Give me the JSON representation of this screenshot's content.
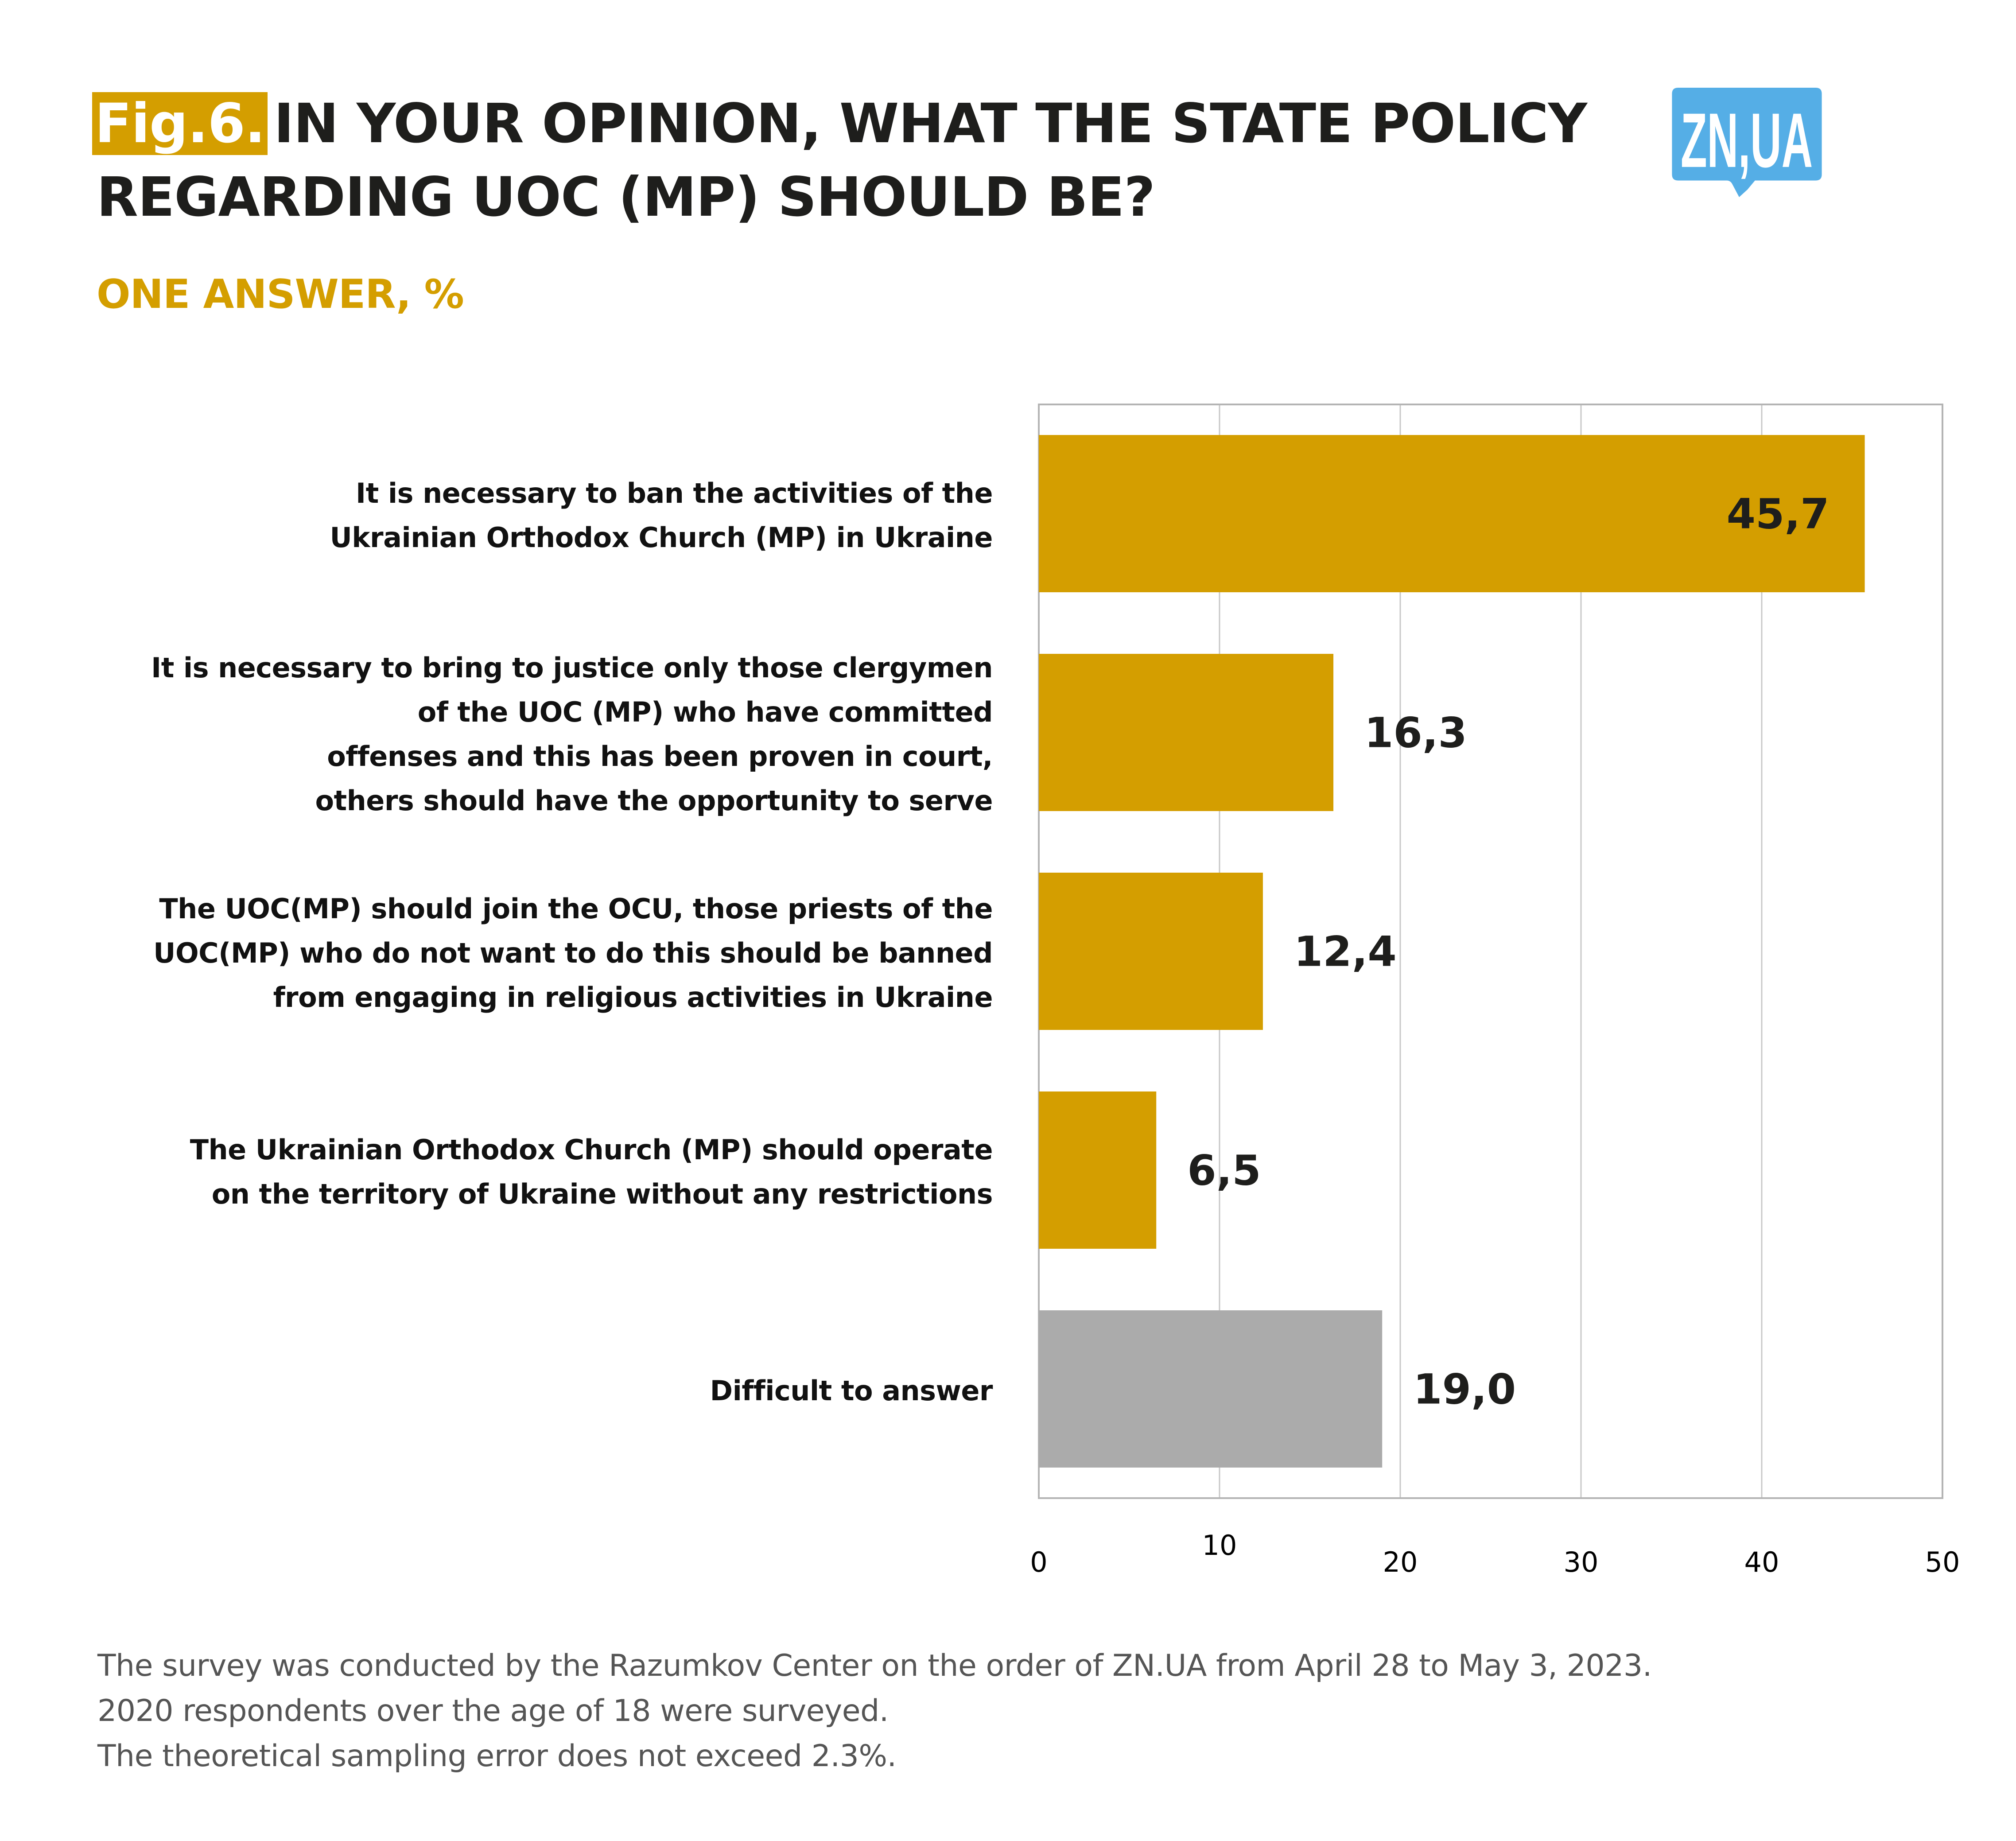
{
  "header": {
    "fig_tag": "Fig.6.",
    "title_line1": "IN YOUR OPINION, WHAT THE STATE POLICY",
    "title_line2": "REGARDING UOC (MP) SHOULD BE?",
    "subtitle": "ONE ANSWER, %"
  },
  "logo": {
    "text": "ZN,UA",
    "color": "#55aee6"
  },
  "colors": {
    "accent": "#d49e00",
    "neutral_bar": "#ababab",
    "grid": "#c8c8c8",
    "text": "#1e1e1c",
    "footer": "#555555"
  },
  "chart_data": {
    "type": "bar",
    "orientation": "horizontal",
    "title": "In your opinion, what the state policy regarding UOC (MP) should be?",
    "subtitle": "One answer, %",
    "xlabel": "",
    "ylabel": "",
    "xlim": [
      0,
      50
    ],
    "xticks": [
      0,
      10,
      20,
      30,
      40,
      50
    ],
    "xtick_labels": [
      "0",
      "10",
      "20",
      "30",
      "40",
      "50"
    ],
    "grid": true,
    "legend": "none",
    "categories": [
      "It is necessary to ban the activities of the Ukrainian Orthodox Church (MP) in Ukraine",
      "It is necessary to bring to justice only those clergymen of the UOC (MP) who have committed offenses and this has been proven in court, others should have the opportunity to serve",
      "The UOC(MP) should join the OCU, those priests of the UOC(MP) who do not want to do this should be banned from engaging in religious activities in Ukraine",
      "The Ukrainian Orthodox Church (MP) should operate on the territory of Ukraine without any restrictions",
      "Difficult to answer"
    ],
    "category_lines": [
      [
        "It is necessary to ban the activities of the",
        "Ukrainian Orthodox Church (MP) in Ukraine"
      ],
      [
        "It is necessary to bring to justice only those clergymen",
        "of the UOC (MP) who have committed",
        "offenses and this has been proven in court,",
        "others should have the opportunity to serve"
      ],
      [
        "The UOC(MP) should join the OCU, those priests of the",
        "UOC(MP) who do not want to do this should be banned",
        "from engaging in religious activities in Ukraine"
      ],
      [
        "The Ukrainian Orthodox Church (MP) should operate",
        "on the territory of Ukraine without any restrictions"
      ],
      [
        "Difficult to answer"
      ]
    ],
    "values": [
      45.7,
      16.3,
      12.4,
      6.5,
      19.0
    ],
    "value_labels": [
      "45,7",
      "16,3",
      "12,4",
      "6,5",
      "19,0"
    ],
    "bar_colors": [
      "#d49e00",
      "#d49e00",
      "#d49e00",
      "#d49e00",
      "#ababab"
    ],
    "label_inside": [
      true,
      false,
      false,
      false,
      false
    ]
  },
  "footer": {
    "lines": [
      "The survey was conducted by the Razumkov Center on the order of ZN.UA from April 28 to May 3, 2023.",
      "2020 respondents over the age of 18 were surveyed.",
      "The theoretical sampling error does not exceed 2.3%."
    ]
  }
}
